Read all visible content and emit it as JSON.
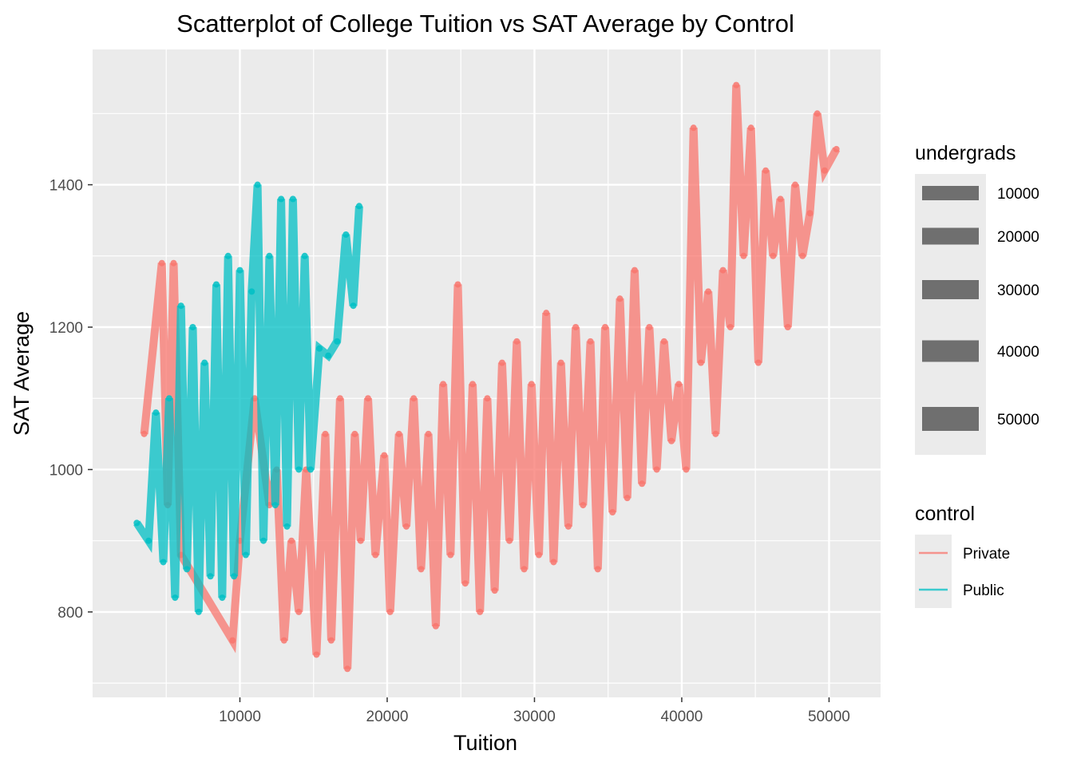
{
  "chart_data": {
    "type": "scatter",
    "title": "Scatterplot of College Tuition vs SAT Average by Control",
    "xlabel": "Tuition",
    "ylabel": "SAT Average",
    "xlim": [
      0,
      53500
    ],
    "ylim": [
      680,
      1590
    ],
    "x_ticks": [
      10000,
      20000,
      30000,
      40000,
      50000
    ],
    "y_ticks": [
      800,
      1000,
      1200,
      1400
    ],
    "x_tick_labels": [
      "10000",
      "20000",
      "30000",
      "40000",
      "50000"
    ],
    "y_tick_labels": [
      "800",
      "1000",
      "1200",
      "1400"
    ],
    "grid": true,
    "geom": "line",
    "size_legend": {
      "title": "undergrads",
      "labels": [
        "10000",
        "20000",
        "30000",
        "40000",
        "50000"
      ],
      "values": [
        10000,
        20000,
        30000,
        40000,
        50000
      ]
    },
    "color_legend": {
      "title": "control",
      "labels": [
        "Private",
        "Public"
      ]
    },
    "colors": {
      "Private": "#F8766D",
      "Public": "#00BFC4",
      "panel": "#EBEBEB",
      "grid": "#FFFFFF",
      "size_key": "#595959"
    },
    "series": [
      {
        "name": "Private",
        "points": [
          [
            3500,
            1050
          ],
          [
            4700,
            1290
          ],
          [
            5100,
            950
          ],
          [
            5500,
            1290
          ],
          [
            6000,
            880
          ],
          [
            9500,
            760
          ],
          [
            10000,
            900
          ],
          [
            11000,
            1100
          ],
          [
            12000,
            950
          ],
          [
            12500,
            1000
          ],
          [
            13000,
            760
          ],
          [
            13500,
            900
          ],
          [
            14000,
            800
          ],
          [
            14500,
            1000
          ],
          [
            15200,
            740
          ],
          [
            15800,
            1050
          ],
          [
            16200,
            760
          ],
          [
            16800,
            1100
          ],
          [
            17300,
            720
          ],
          [
            17800,
            1050
          ],
          [
            18200,
            900
          ],
          [
            18700,
            1100
          ],
          [
            19200,
            880
          ],
          [
            19800,
            1020
          ],
          [
            20200,
            800
          ],
          [
            20800,
            1050
          ],
          [
            21300,
            920
          ],
          [
            21800,
            1100
          ],
          [
            22300,
            860
          ],
          [
            22800,
            1050
          ],
          [
            23300,
            780
          ],
          [
            23800,
            1120
          ],
          [
            24300,
            880
          ],
          [
            24800,
            1260
          ],
          [
            25300,
            840
          ],
          [
            25800,
            1120
          ],
          [
            26300,
            800
          ],
          [
            26800,
            1100
          ],
          [
            27300,
            830
          ],
          [
            27800,
            1150
          ],
          [
            28300,
            900
          ],
          [
            28800,
            1180
          ],
          [
            29300,
            860
          ],
          [
            29800,
            1120
          ],
          [
            30300,
            880
          ],
          [
            30800,
            1220
          ],
          [
            31300,
            870
          ],
          [
            31800,
            1150
          ],
          [
            32300,
            920
          ],
          [
            32800,
            1200
          ],
          [
            33300,
            950
          ],
          [
            33800,
            1180
          ],
          [
            34300,
            860
          ],
          [
            34800,
            1200
          ],
          [
            35300,
            940
          ],
          [
            35800,
            1240
          ],
          [
            36300,
            960
          ],
          [
            36800,
            1280
          ],
          [
            37300,
            980
          ],
          [
            37800,
            1200
          ],
          [
            38300,
            1000
          ],
          [
            38800,
            1180
          ],
          [
            39300,
            1040
          ],
          [
            39800,
            1120
          ],
          [
            40300,
            1000
          ],
          [
            40800,
            1480
          ],
          [
            41300,
            1150
          ],
          [
            41800,
            1250
          ],
          [
            42300,
            1050
          ],
          [
            42800,
            1280
          ],
          [
            43300,
            1200
          ],
          [
            43700,
            1540
          ],
          [
            44200,
            1300
          ],
          [
            44700,
            1480
          ],
          [
            45200,
            1150
          ],
          [
            45700,
            1420
          ],
          [
            46200,
            1300
          ],
          [
            46700,
            1380
          ],
          [
            47200,
            1200
          ],
          [
            47700,
            1400
          ],
          [
            48200,
            1300
          ],
          [
            48700,
            1360
          ],
          [
            49200,
            1500
          ],
          [
            49700,
            1420
          ],
          [
            50500,
            1450
          ]
        ]
      },
      {
        "name": "Public",
        "points": [
          [
            3000,
            925
          ],
          [
            3800,
            900
          ],
          [
            4300,
            1080
          ],
          [
            4800,
            870
          ],
          [
            5200,
            1100
          ],
          [
            5600,
            820
          ],
          [
            6000,
            1230
          ],
          [
            6400,
            860
          ],
          [
            6800,
            1200
          ],
          [
            7200,
            800
          ],
          [
            7600,
            1150
          ],
          [
            8000,
            850
          ],
          [
            8400,
            1260
          ],
          [
            8800,
            820
          ],
          [
            9200,
            1300
          ],
          [
            9600,
            850
          ],
          [
            10000,
            1280
          ],
          [
            10400,
            880
          ],
          [
            10800,
            1250
          ],
          [
            11200,
            1400
          ],
          [
            11600,
            900
          ],
          [
            12000,
            1300
          ],
          [
            12400,
            950
          ],
          [
            12800,
            1380
          ],
          [
            13200,
            920
          ],
          [
            13600,
            1380
          ],
          [
            14000,
            1000
          ],
          [
            14400,
            1300
          ],
          [
            14800,
            1000
          ],
          [
            15400,
            1170
          ],
          [
            16000,
            1160
          ],
          [
            16600,
            1180
          ],
          [
            17200,
            1330
          ],
          [
            17700,
            1230
          ],
          [
            18100,
            1370
          ]
        ]
      }
    ]
  }
}
